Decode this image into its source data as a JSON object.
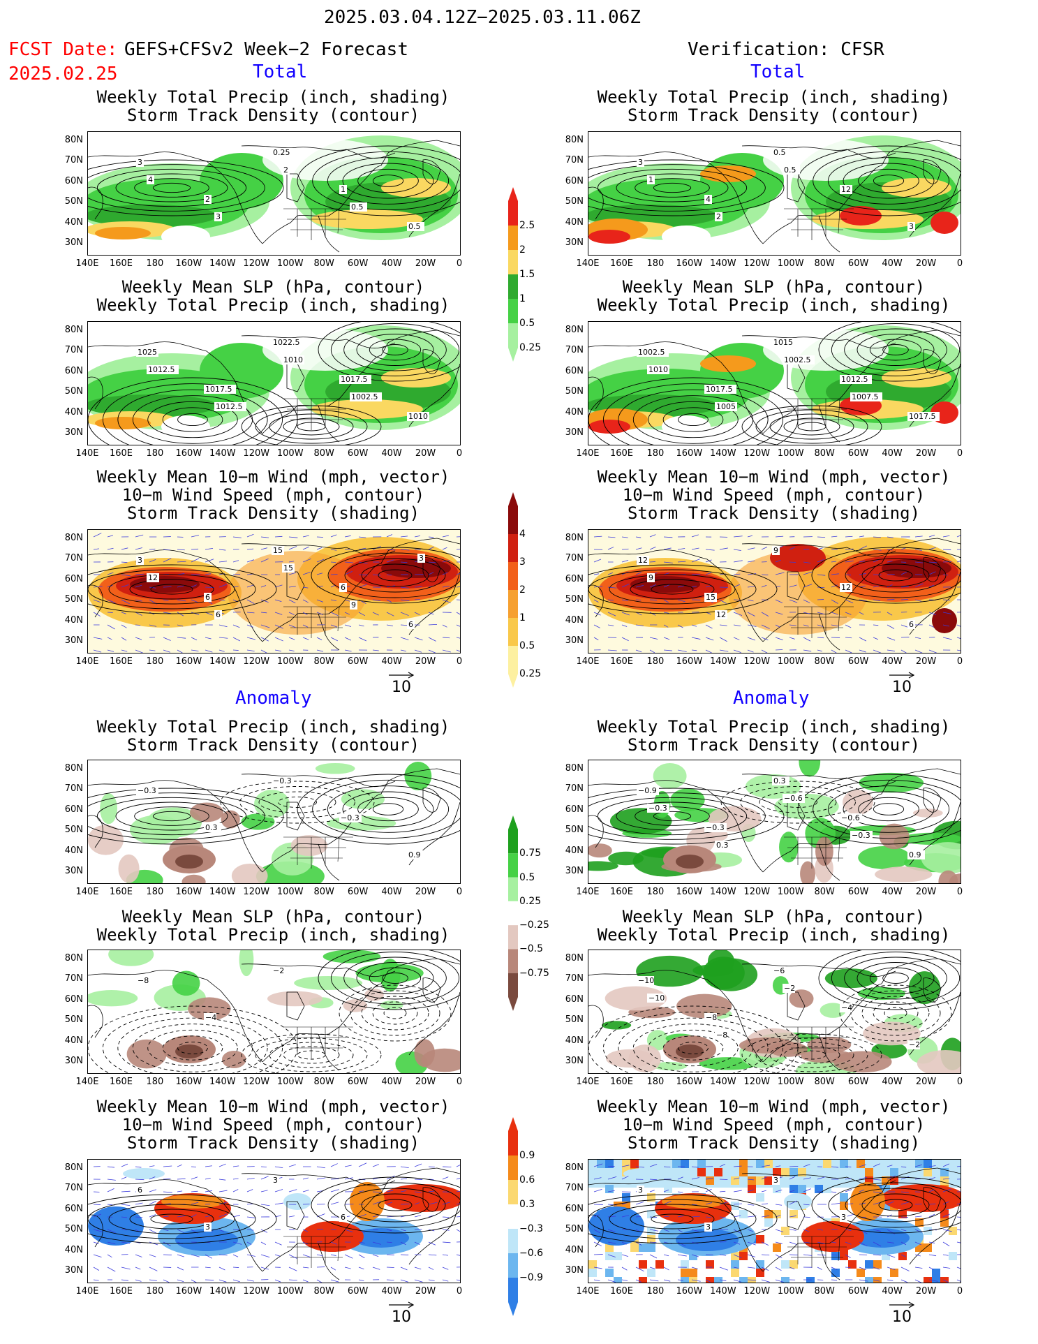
{
  "header": {
    "period": "2025.03.04.12Z−2025.03.11.06Z",
    "fcst_label": "FCST Date:",
    "fcst_model": "GEFS+CFSv2 Week−2 Forecast",
    "fcst_date": "2025.02.25",
    "verification": "Verification: CFSR"
  },
  "sections": {
    "total": "Total",
    "anomaly": "Anomaly"
  },
  "panel_titles": {
    "precip_storm": "Weekly Total Precip (inch, shading)\nStorm Track Density (contour)",
    "slp_precip": "Weekly Mean SLP (hPa, contour)\nWeekly Total Precip (inch, shading)",
    "wind_storm": "Weekly Mean 10−m Wind (mph, vector)\n10−m Wind Speed (mph, contour)\nStorm Track Density (shading)"
  },
  "axes": {
    "lat_ticks": [
      "80N",
      "70N",
      "60N",
      "50N",
      "40N",
      "30N"
    ],
    "lon_ticks": [
      "140E",
      "160E",
      "180",
      "160W",
      "140W",
      "120W",
      "100W",
      "80W",
      "60W",
      "40W",
      "20W",
      "0"
    ],
    "vector_ref": "10"
  },
  "colorbars": {
    "precip_total": {
      "labels": [
        "2.5",
        "2",
        "1.5",
        "1",
        "0.5",
        "0.25"
      ],
      "colors": [
        "#e8241a",
        "#f59a1c",
        "#fad861",
        "#2faa2f",
        "#45d145",
        "#a6f0a0"
      ]
    },
    "storm_total": {
      "labels": [
        "4",
        "3",
        "2",
        "1",
        "0.5",
        "0.25"
      ],
      "colors": [
        "#8a0a0a",
        "#d02010",
        "#f2601a",
        "#f6a030",
        "#f9c84a",
        "#fdf0a0"
      ]
    },
    "precip_anom": {
      "labels": [
        "0.75",
        "0.5",
        "0.25",
        "−0.25",
        "−0.5",
        "−0.75"
      ],
      "colors": [
        "#1ea01e",
        "#45d145",
        "#a6f0a0",
        "#ffffff",
        "#e3c8c0",
        "#b8877a",
        "#7a4a3e"
      ]
    },
    "storm_anom": {
      "labels": [
        "0.9",
        "0.6",
        "0.3",
        "−0.3",
        "−0.6",
        "−0.9"
      ],
      "colors": [
        "#e8300e",
        "#f58a1a",
        "#fbd870",
        "#ffffff",
        "#bfe6f8",
        "#6cb6ef",
        "#2f7fe6"
      ]
    }
  },
  "map_labels": {
    "fcst_precip_storm": [
      "3",
      "2",
      "0.25",
      "1",
      "0.5",
      "4",
      "3",
      "2",
      "0.5"
    ],
    "verif_precip_storm": [
      "3",
      "4",
      "0.5",
      "12",
      "3",
      "1",
      "2",
      "0.5"
    ],
    "fcst_slp_precip": [
      "1025",
      "1017.5",
      "1022.5",
      "1017.5",
      "1010",
      "1012.5",
      "1012.5",
      "1010",
      "1002.5"
    ],
    "verif_slp_precip": [
      "1002.5",
      "1017.5",
      "1015",
      "1012.5",
      "1017.5",
      "1010",
      "1005",
      "1002.5",
      "1007.5"
    ],
    "fcst_wind": [
      "3",
      "6",
      "15",
      "6",
      "6",
      "12",
      "6",
      "15",
      "9",
      "3"
    ],
    "verif_wind": [
      "12",
      "15",
      "9",
      "12",
      "6",
      "9",
      "12"
    ],
    "fcst_anom_precip": [
      "−0.3",
      "0.3",
      "−0.3",
      "−0.3",
      "0.9"
    ],
    "verif_anom_precip": [
      "−0.9",
      "−0.3",
      "0.3",
      "−0.6",
      "0.9",
      "−0.3",
      "0.3",
      "−0.6",
      "−0.3"
    ],
    "fcst_anom_slp": [
      "−8",
      "−4",
      "−2"
    ],
    "verif_anom_slp": [
      "−10",
      "−8",
      "−6",
      "−4",
      "−2",
      "−10",
      "−8",
      "−2"
    ],
    "fcst_anom_wind": [
      "6",
      "3",
      "3",
      "6"
    ],
    "verif_anom_wind": [
      "3",
      "3",
      "3",
      "3"
    ]
  }
}
